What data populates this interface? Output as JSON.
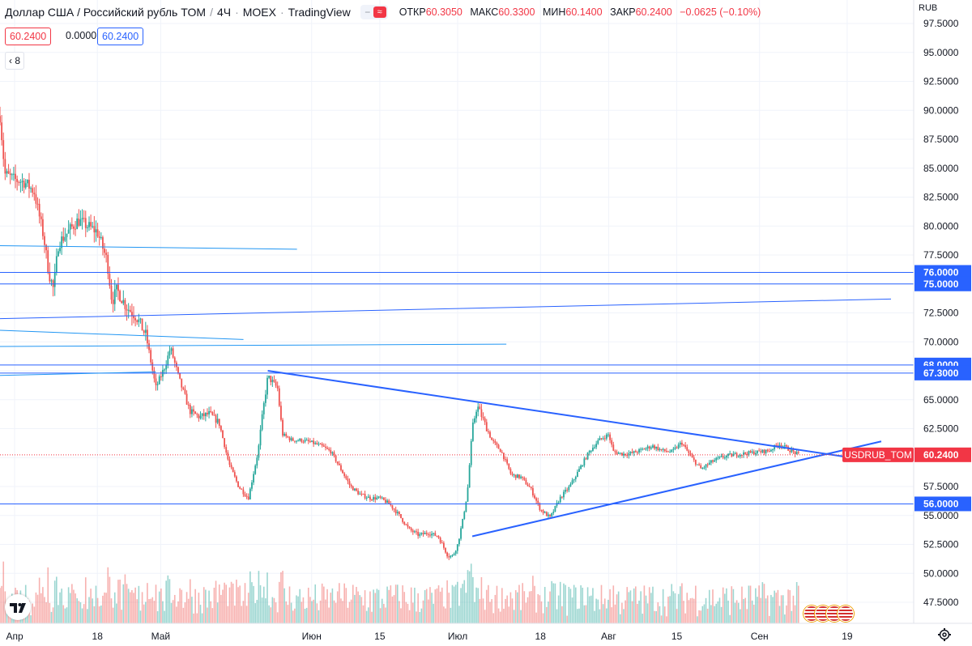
{
  "header": {
    "title": "Доллар США / Российский рубль TOM",
    "interval": "4Ч",
    "exchange": "MOEX",
    "source": "TradingView",
    "toggle_dash": "−",
    "toggle_wave": "≈",
    "ohlc": {
      "open_label": "ОТКР",
      "open": "60.3050",
      "high_label": "МАКС",
      "high": "60.3300",
      "low_label": "МИН",
      "low": "60.1400",
      "close_label": "ЗАКР",
      "close": "60.2400",
      "change": "−0.0625 (−0.10%)"
    }
  },
  "values_row": {
    "red": "60.2400",
    "plain": "0.0000",
    "blue": "60.2400"
  },
  "indicators_count": "8",
  "collapse_glyph": "‹",
  "currency": "RUB",
  "colors": {
    "up": "#26a69a",
    "down": "#ef5350",
    "line": "#2962ff",
    "light_line": "#2196f3",
    "grid": "#f0f3fa",
    "price_label_bg": "#f23645",
    "hline_label_bg": "#2962ff"
  },
  "icons": {
    "logo": "tradingview-logo",
    "settings": "gear-icon",
    "flags": "us-flag-icon"
  },
  "chart_data": {
    "type": "candlestick",
    "symbol": "USDRUB_TOM",
    "last_price": 60.24,
    "ylim": [
      45.5,
      98
    ],
    "y_ticks": [
      "97.5000",
      "95.0000",
      "92.5000",
      "90.0000",
      "87.5000",
      "85.0000",
      "82.5000",
      "80.0000",
      "77.5000",
      "75.0000",
      "72.5000",
      "70.0000",
      "67.5000",
      "65.0000",
      "62.5000",
      "60.0000",
      "57.5000",
      "55.0000",
      "52.5000",
      "50.0000",
      "47.5000"
    ],
    "x_ticks": [
      {
        "label": "Апр",
        "date": "2022-04-01"
      },
      {
        "label": "18",
        "date": "2022-04-18"
      },
      {
        "label": "Май",
        "date": "2022-05-01"
      },
      {
        "label": "Июн",
        "date": "2022-06-01"
      },
      {
        "label": "15",
        "date": "2022-06-15"
      },
      {
        "label": "Июл",
        "date": "2022-07-01"
      },
      {
        "label": "18",
        "date": "2022-07-18"
      },
      {
        "label": "Авг",
        "date": "2022-08-01"
      },
      {
        "label": "15",
        "date": "2022-08-15"
      },
      {
        "label": "Сен",
        "date": "2022-09-01"
      },
      {
        "label": "19",
        "date": "2022-09-19"
      }
    ],
    "x_range": [
      "2022-03-29",
      "2022-09-28"
    ],
    "price_path": [
      [
        "2022-03-29",
        89.5
      ],
      [
        "2022-03-30",
        84.5
      ],
      [
        "2022-04-01",
        84.0
      ],
      [
        "2022-04-03",
        83.8
      ],
      [
        "2022-04-05",
        83.0
      ],
      [
        "2022-04-07",
        79.0
      ],
      [
        "2022-04-08",
        76.0
      ],
      [
        "2022-04-09",
        74.5
      ],
      [
        "2022-04-10",
        78.5
      ],
      [
        "2022-04-12",
        79.5
      ],
      [
        "2022-04-14",
        80.5
      ],
      [
        "2022-04-16",
        80.0
      ],
      [
        "2022-04-18",
        79.5
      ],
      [
        "2022-04-20",
        77.0
      ],
      [
        "2022-04-21",
        73.5
      ],
      [
        "2022-04-22",
        74.5
      ],
      [
        "2022-04-24",
        73.0
      ],
      [
        "2022-04-26",
        72.2
      ],
      [
        "2022-04-28",
        70.5
      ],
      [
        "2022-04-30",
        66.0
      ],
      [
        "2022-05-02",
        68.0
      ],
      [
        "2022-05-03",
        69.5
      ],
      [
        "2022-05-05",
        66.5
      ],
      [
        "2022-05-07",
        64.0
      ],
      [
        "2022-05-09",
        63.5
      ],
      [
        "2022-05-11",
        63.8
      ],
      [
        "2022-05-13",
        63.0
      ],
      [
        "2022-05-15",
        59.5
      ],
      [
        "2022-05-17",
        57.5
      ],
      [
        "2022-05-19",
        56.5
      ],
      [
        "2022-05-21",
        60.5
      ],
      [
        "2022-05-22",
        64.0
      ],
      [
        "2022-05-23",
        67.0
      ],
      [
        "2022-05-25",
        66.0
      ],
      [
        "2022-05-26",
        62.0
      ],
      [
        "2022-05-28",
        61.5
      ],
      [
        "2022-05-30",
        61.5
      ],
      [
        "2022-06-01",
        61.3
      ],
      [
        "2022-06-03",
        61.0
      ],
      [
        "2022-06-05",
        60.5
      ],
      [
        "2022-06-07",
        59.0
      ],
      [
        "2022-06-09",
        57.5
      ],
      [
        "2022-06-11",
        56.8
      ],
      [
        "2022-06-13",
        56.5
      ],
      [
        "2022-06-15",
        56.5
      ],
      [
        "2022-06-17",
        56.0
      ],
      [
        "2022-06-19",
        55.0
      ],
      [
        "2022-06-21",
        53.8
      ],
      [
        "2022-06-23",
        53.3
      ],
      [
        "2022-06-25",
        53.5
      ],
      [
        "2022-06-27",
        53.2
      ],
      [
        "2022-06-29",
        51.5
      ],
      [
        "2022-06-30",
        51.5
      ],
      [
        "2022-07-01",
        52.5
      ],
      [
        "2022-07-02",
        54.5
      ],
      [
        "2022-07-03",
        57.0
      ],
      [
        "2022-07-04",
        62.5
      ],
      [
        "2022-07-05",
        64.5
      ],
      [
        "2022-07-06",
        63.5
      ],
      [
        "2022-07-08",
        61.5
      ],
      [
        "2022-07-10",
        60.5
      ],
      [
        "2022-07-12",
        58.5
      ],
      [
        "2022-07-14",
        58.3
      ],
      [
        "2022-07-16",
        57.3
      ],
      [
        "2022-07-18",
        55.5
      ],
      [
        "2022-07-20",
        54.8
      ],
      [
        "2022-07-22",
        56.5
      ],
      [
        "2022-07-24",
        57.5
      ],
      [
        "2022-07-26",
        59.0
      ],
      [
        "2022-07-28",
        60.5
      ],
      [
        "2022-07-30",
        61.5
      ],
      [
        "2022-08-01",
        62.0
      ],
      [
        "2022-08-02",
        60.5
      ],
      [
        "2022-08-04",
        60.3
      ],
      [
        "2022-08-06",
        60.4
      ],
      [
        "2022-08-08",
        60.7
      ],
      [
        "2022-08-10",
        61.0
      ],
      [
        "2022-08-12",
        60.6
      ],
      [
        "2022-08-14",
        60.5
      ],
      [
        "2022-08-16",
        61.3
      ],
      [
        "2022-08-18",
        60.0
      ],
      [
        "2022-08-20",
        59.0
      ],
      [
        "2022-08-22",
        59.6
      ],
      [
        "2022-08-24",
        60.0
      ],
      [
        "2022-08-26",
        60.2
      ],
      [
        "2022-08-28",
        60.3
      ],
      [
        "2022-08-30",
        60.4
      ],
      [
        "2022-09-01",
        60.5
      ],
      [
        "2022-09-03",
        60.6
      ],
      [
        "2022-09-05",
        61.2
      ],
      [
        "2022-09-07",
        60.7
      ],
      [
        "2022-09-09",
        60.24
      ]
    ],
    "lines": [
      {
        "kind": "trend",
        "style": "thick",
        "from": [
          "2022-05-23",
          67.5
        ],
        "to": [
          "2022-09-23",
          59.8
        ]
      },
      {
        "kind": "trend",
        "style": "thick",
        "from": [
          "2022-07-04",
          53.2
        ],
        "to": [
          "2022-09-26",
          61.4
        ]
      },
      {
        "kind": "ray",
        "from": [
          "2022-03-29",
          72.0
        ],
        "to": [
          "2022-09-28",
          73.7
        ]
      },
      {
        "kind": "segment",
        "from": [
          "2022-03-29",
          78.3
        ],
        "to": [
          "2022-05-29",
          78.0
        ]
      },
      {
        "kind": "segment",
        "from": [
          "2022-03-29",
          71.0
        ],
        "to": [
          "2022-05-18",
          70.2
        ]
      },
      {
        "kind": "segment",
        "from": [
          "2022-03-29",
          69.6
        ],
        "to": [
          "2022-07-11",
          69.8
        ]
      },
      {
        "kind": "segment",
        "from": [
          "2022-03-29",
          67.1
        ],
        "to": [
          "2022-04-30",
          67.4
        ]
      }
    ],
    "horizontal_levels": [
      {
        "value": 76.0,
        "label": "76.0000"
      },
      {
        "value": 75.0,
        "label": "75.0000"
      },
      {
        "value": 68.0,
        "label": "68.0000"
      },
      {
        "value": 67.3,
        "label": "67.3000"
      },
      {
        "value": 56.0,
        "label": "56.0000"
      }
    ],
    "symbol_tag": "USDRUB_TOM",
    "price_tag": "60.2400"
  }
}
